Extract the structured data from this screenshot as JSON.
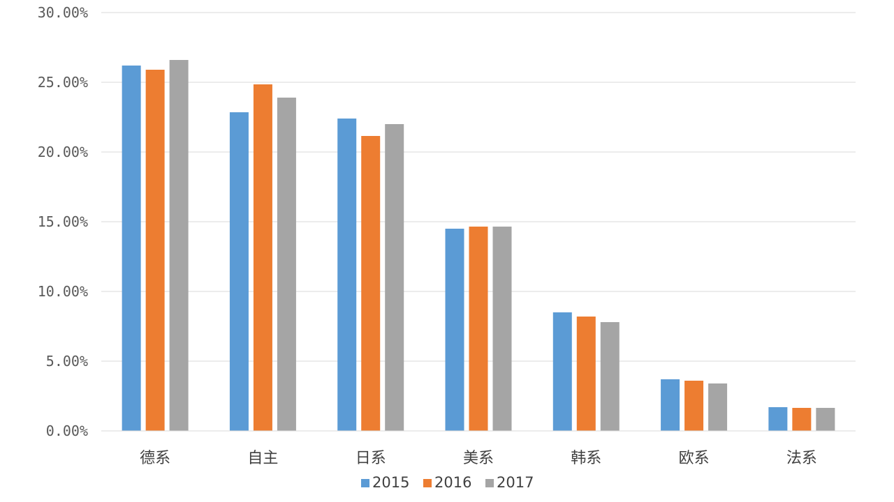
{
  "chart_data": {
    "type": "bar",
    "title": "",
    "xlabel": "",
    "ylabel": "",
    "categories": [
      "德系",
      "自主",
      "日系",
      "美系",
      "韩系",
      "欧系",
      "法系"
    ],
    "series": [
      {
        "name": "2015",
        "color": "#5b9bd5",
        "values": [
          26.2,
          22.85,
          22.4,
          14.5,
          8.5,
          3.7,
          1.7
        ]
      },
      {
        "name": "2016",
        "color": "#ed7d31",
        "values": [
          25.9,
          24.85,
          21.15,
          14.65,
          8.2,
          3.6,
          1.65
        ]
      },
      {
        "name": "2017",
        "color": "#a5a5a5",
        "values": [
          26.6,
          23.9,
          22.0,
          14.65,
          7.8,
          3.4,
          1.65
        ]
      }
    ],
    "ylim": [
      0,
      30
    ],
    "yticks": [
      "0.00%",
      "5.00%",
      "10.00%",
      "15.00%",
      "20.00%",
      "25.00%",
      "30.00%"
    ],
    "grid": true,
    "legend_position": "bottom"
  }
}
